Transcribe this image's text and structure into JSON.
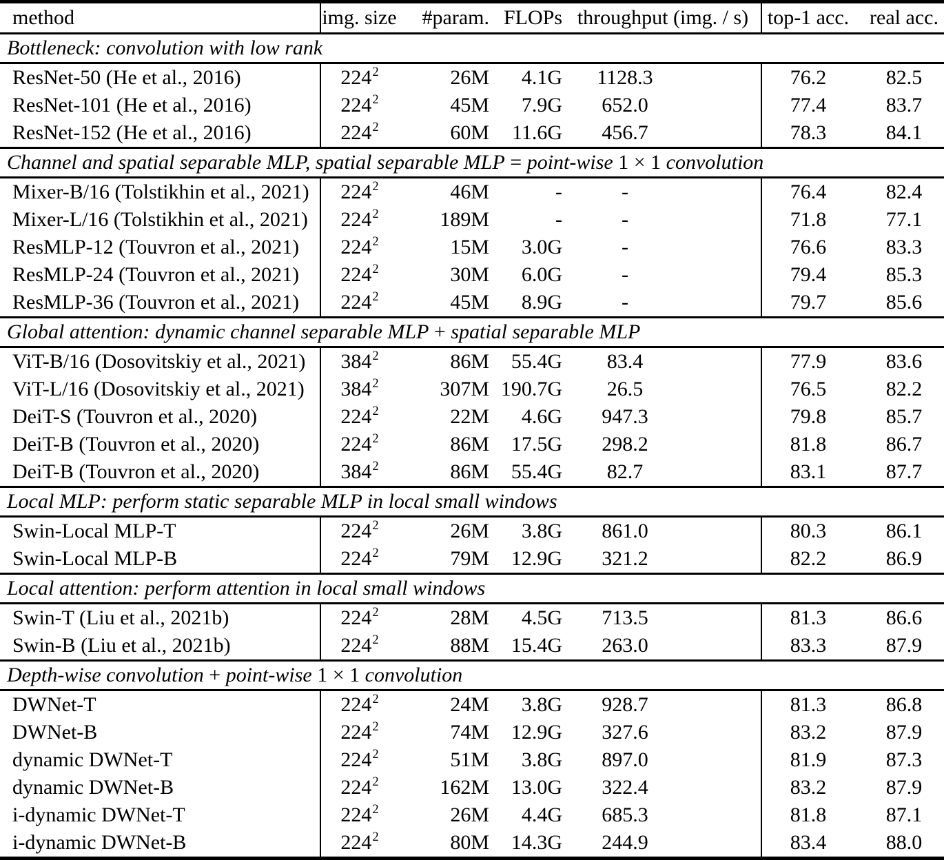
{
  "table": {
    "columns": [
      {
        "label": "method",
        "align": "left"
      },
      {
        "label": "img. size",
        "align": "center"
      },
      {
        "label": "#param.",
        "align": "right"
      },
      {
        "label": "FLOPs",
        "align": "right"
      },
      {
        "label": "throughput (img. / s)",
        "align": "center"
      },
      {
        "label": "top-1 acc.",
        "align": "center"
      },
      {
        "label": "real acc.",
        "align": "center"
      }
    ],
    "sections": [
      {
        "header_parts": [
          {
            "text": "Bottleneck: convolution with low rank",
            "math": false
          }
        ],
        "rows": [
          {
            "method": "ResNet-50 (He et al., 2016)",
            "img": {
              "base": "224",
              "exp": "2"
            },
            "params": "26M",
            "flops": "4.1G",
            "throughput": "1128.3",
            "top1": "76.2",
            "real": "82.5"
          },
          {
            "method": "ResNet-101 (He et al., 2016)",
            "img": {
              "base": "224",
              "exp": "2"
            },
            "params": "45M",
            "flops": "7.9G",
            "throughput": "652.0",
            "top1": "77.4",
            "real": "83.7"
          },
          {
            "method": "ResNet-152 (He et al., 2016)",
            "img": {
              "base": "224",
              "exp": "2"
            },
            "params": "60M",
            "flops": "11.6G",
            "throughput": "456.7",
            "top1": "78.3",
            "real": "84.1"
          }
        ]
      },
      {
        "header_parts": [
          {
            "text": "Channel and spatial separable MLP, spatial separable MLP",
            "math": false
          },
          {
            "text": " = ",
            "math": true
          },
          {
            "text": "point-wise",
            "math": false
          },
          {
            "text": " 1 × 1 ",
            "math": true
          },
          {
            "text": "convolution",
            "math": false
          }
        ],
        "rows": [
          {
            "method": "Mixer-B/16 (Tolstikhin et al., 2021)",
            "img": {
              "base": "224",
              "exp": "2"
            },
            "params": "46M",
            "flops": "-",
            "throughput": "-",
            "top1": "76.4",
            "real": "82.4"
          },
          {
            "method": "Mixer-L/16 (Tolstikhin et al., 2021)",
            "img": {
              "base": "224",
              "exp": "2"
            },
            "params": "189M",
            "flops": "-",
            "throughput": "-",
            "top1": "71.8",
            "real": "77.1"
          },
          {
            "method": "ResMLP-12 (Touvron et al., 2021)",
            "img": {
              "base": "224",
              "exp": "2"
            },
            "params": "15M",
            "flops": "3.0G",
            "throughput": "-",
            "top1": "76.6",
            "real": "83.3"
          },
          {
            "method": "ResMLP-24 (Touvron et al., 2021)",
            "img": {
              "base": "224",
              "exp": "2"
            },
            "params": "30M",
            "flops": "6.0G",
            "throughput": "-",
            "top1": "79.4",
            "real": "85.3"
          },
          {
            "method": "ResMLP-36 (Touvron et al., 2021)",
            "img": {
              "base": "224",
              "exp": "2"
            },
            "params": "45M",
            "flops": "8.9G",
            "throughput": "-",
            "top1": "79.7",
            "real": "85.6"
          }
        ]
      },
      {
        "header_parts": [
          {
            "text": "Global attention: dynamic channel separable MLP",
            "math": false
          },
          {
            "text": " + ",
            "math": true
          },
          {
            "text": "spatial separable MLP",
            "math": false
          }
        ],
        "rows": [
          {
            "method": "ViT-B/16 (Dosovitskiy et al., 2021)",
            "img": {
              "base": "384",
              "exp": "2"
            },
            "params": "86M",
            "flops": "55.4G",
            "throughput": "83.4",
            "top1": "77.9",
            "real": "83.6"
          },
          {
            "method": "ViT-L/16 (Dosovitskiy et al., 2021)",
            "img": {
              "base": "384",
              "exp": "2"
            },
            "params": "307M",
            "flops": "190.7G",
            "throughput": "26.5",
            "top1": "76.5",
            "real": "82.2"
          },
          {
            "method": "DeiT-S (Touvron et al., 2020)",
            "img": {
              "base": "224",
              "exp": "2"
            },
            "params": "22M",
            "flops": "4.6G",
            "throughput": "947.3",
            "top1": "79.8",
            "real": "85.7"
          },
          {
            "method": "DeiT-B (Touvron et al., 2020)",
            "img": {
              "base": "224",
              "exp": "2"
            },
            "params": "86M",
            "flops": "17.5G",
            "throughput": "298.2",
            "top1": "81.8",
            "real": "86.7"
          },
          {
            "method": "DeiT-B (Touvron et al., 2020)",
            "img": {
              "base": "384",
              "exp": "2"
            },
            "params": "86M",
            "flops": "55.4G",
            "throughput": "82.7",
            "top1": "83.1",
            "real": "87.7"
          }
        ]
      },
      {
        "header_parts": [
          {
            "text": "Local MLP: perform static separable MLP in local small windows",
            "math": false
          }
        ],
        "rows": [
          {
            "method": "Swin-Local MLP-T",
            "img": {
              "base": "224",
              "exp": "2"
            },
            "params": "26M",
            "flops": "3.8G",
            "throughput": "861.0",
            "top1": "80.3",
            "real": "86.1"
          },
          {
            "method": "Swin-Local MLP-B",
            "img": {
              "base": "224",
              "exp": "2"
            },
            "params": "79M",
            "flops": "12.9G",
            "throughput": "321.2",
            "top1": "82.2",
            "real": "86.9"
          }
        ]
      },
      {
        "header_parts": [
          {
            "text": "Local attention: perform attention in local small windows",
            "math": false
          }
        ],
        "rows": [
          {
            "method": "Swin-T (Liu et al., 2021b)",
            "img": {
              "base": "224",
              "exp": "2"
            },
            "params": "28M",
            "flops": "4.5G",
            "throughput": "713.5",
            "top1": "81.3",
            "real": "86.6"
          },
          {
            "method": "Swin-B (Liu et al., 2021b)",
            "img": {
              "base": "224",
              "exp": "2"
            },
            "params": "88M",
            "flops": "15.4G",
            "throughput": "263.0",
            "top1": "83.3",
            "real": "87.9"
          }
        ]
      },
      {
        "header_parts": [
          {
            "text": "Depth-wise convolution",
            "math": false
          },
          {
            "text": " + ",
            "math": true
          },
          {
            "text": "point-wise",
            "math": false
          },
          {
            "text": " 1 × 1 ",
            "math": true
          },
          {
            "text": "convolution",
            "math": false
          }
        ],
        "rows": [
          {
            "method": "DWNet-T",
            "img": {
              "base": "224",
              "exp": "2"
            },
            "params": "24M",
            "flops": "3.8G",
            "throughput": "928.7",
            "top1": "81.3",
            "real": "86.8"
          },
          {
            "method": "DWNet-B",
            "img": {
              "base": "224",
              "exp": "2"
            },
            "params": "74M",
            "flops": "12.9G",
            "throughput": "327.6",
            "top1": "83.2",
            "real": "87.9"
          },
          {
            "method": "dynamic DWNet-T",
            "img": {
              "base": "224",
              "exp": "2"
            },
            "params": "51M",
            "flops": "3.8G",
            "throughput": "897.0",
            "top1": "81.9",
            "real": "87.3"
          },
          {
            "method": "dynamic DWNet-B",
            "img": {
              "base": "224",
              "exp": "2"
            },
            "params": "162M",
            "flops": "13.0G",
            "throughput": "322.4",
            "top1": "83.2",
            "real": "87.9"
          },
          {
            "method": "i-dynamic DWNet-T",
            "img": {
              "base": "224",
              "exp": "2"
            },
            "params": "26M",
            "flops": "4.4G",
            "throughput": "685.3",
            "top1": "81.8",
            "real": "87.1"
          },
          {
            "method": "i-dynamic DWNet-B",
            "img": {
              "base": "224",
              "exp": "2"
            },
            "params": "80M",
            "flops": "14.3G",
            "throughput": "244.9",
            "top1": "83.4",
            "real": "88.0"
          }
        ]
      }
    ],
    "colors": {
      "text": "#000000",
      "background": "#ffffff",
      "rule": "#000000"
    }
  }
}
